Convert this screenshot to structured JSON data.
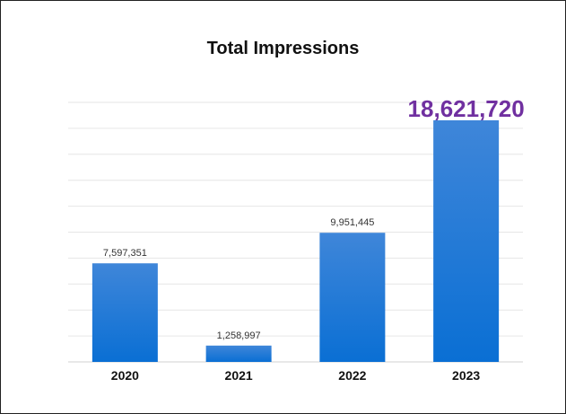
{
  "chart_data": {
    "type": "bar",
    "title": "Total Impressions",
    "xlabel": "",
    "ylabel": "",
    "categories": [
      "2020",
      "2021",
      "2022",
      "2023"
    ],
    "values": [
      7597351,
      1258997,
      9951445,
      18621720
    ],
    "value_labels": [
      "7,597,351",
      "1,258,997",
      "9,951,445",
      "18,621,720"
    ],
    "highlight_index": 3,
    "ylim": [
      0,
      20000000
    ],
    "grid": true,
    "legend": "none",
    "bar_color": "#0a6fd4",
    "bar_color_top": "#3f86d9",
    "highlight_label_color": "#7030a0"
  }
}
